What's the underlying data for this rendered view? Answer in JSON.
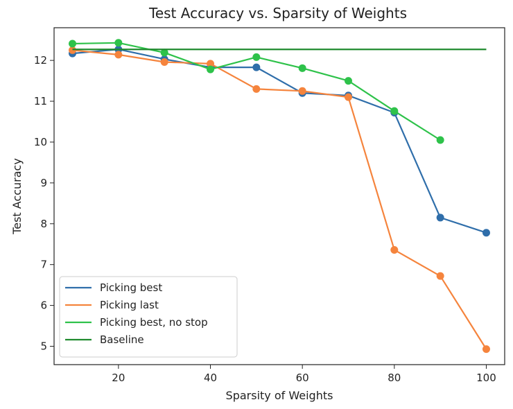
{
  "chart_data": {
    "type": "line",
    "title": "Test Accuracy vs. Sparsity of Weights",
    "xlabel": "Sparsity of Weights",
    "ylabel": "Test Accuracy",
    "xlim": [
      6,
      104
    ],
    "ylim": [
      4.55,
      12.8
    ],
    "xticks": [
      20,
      40,
      60,
      80,
      100
    ],
    "yticks": [
      5,
      6,
      7,
      8,
      9,
      10,
      11,
      12
    ],
    "grid": false,
    "legend_position": "lower-left",
    "series": [
      {
        "name": "Picking best",
        "color": "#2f6eaa",
        "markers": true,
        "x": [
          10,
          20,
          30,
          40,
          50,
          60,
          70,
          80,
          90,
          100
        ],
        "y": [
          12.17,
          12.27,
          12.03,
          11.83,
          11.83,
          11.2,
          11.14,
          10.72,
          8.15,
          7.78
        ]
      },
      {
        "name": "Picking last",
        "color": "#f5843d",
        "markers": true,
        "x": [
          10,
          20,
          30,
          40,
          50,
          60,
          70,
          80,
          90,
          100
        ],
        "y": [
          12.25,
          12.14,
          11.96,
          11.92,
          11.3,
          11.25,
          11.1,
          7.36,
          6.72,
          4.93
        ]
      },
      {
        "name": "Picking best, no stop",
        "color": "#2ec24a",
        "markers": true,
        "x": [
          10,
          20,
          30,
          40,
          50,
          60,
          70,
          80,
          90
        ],
        "y": [
          12.41,
          12.43,
          12.19,
          11.78,
          12.08,
          11.81,
          11.5,
          10.76,
          10.05
        ]
      },
      {
        "name": "Baseline",
        "color": "#1f8a2e",
        "markers": false,
        "x": [
          10,
          100
        ],
        "y": [
          12.27,
          12.27
        ]
      }
    ]
  }
}
